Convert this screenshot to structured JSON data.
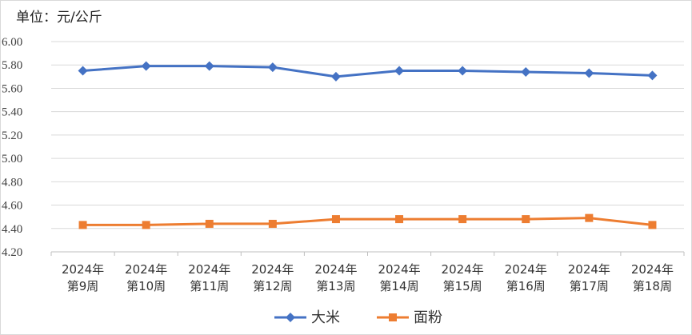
{
  "chart_data": {
    "type": "line",
    "unit_label": "单位：元/公斤",
    "categories": [
      [
        "2024年",
        "第9周"
      ],
      [
        "2024年",
        "第10周"
      ],
      [
        "2024年",
        "第11周"
      ],
      [
        "2024年",
        "第12周"
      ],
      [
        "2024年",
        "第13周"
      ],
      [
        "2024年",
        "第14周"
      ],
      [
        "2024年",
        "第15周"
      ],
      [
        "2024年",
        "第16周"
      ],
      [
        "2024年",
        "第17周"
      ],
      [
        "2024年",
        "第18周"
      ]
    ],
    "yticks": [
      "4.20",
      "4.40",
      "4.60",
      "4.80",
      "5.00",
      "5.20",
      "5.40",
      "5.60",
      "5.80",
      "6.00"
    ],
    "ylim": [
      4.2,
      6.0
    ],
    "grid": true,
    "legend_position": "bottom",
    "series": [
      {
        "name": "大米",
        "color": "#4472C4",
        "marker": "diamond",
        "values": [
          5.75,
          5.79,
          5.79,
          5.78,
          5.7,
          5.75,
          5.75,
          5.74,
          5.73,
          5.71
        ]
      },
      {
        "name": "面粉",
        "color": "#ED7D31",
        "marker": "square",
        "values": [
          4.43,
          4.43,
          4.44,
          4.44,
          4.48,
          4.48,
          4.48,
          4.48,
          4.49,
          4.43
        ]
      }
    ]
  }
}
